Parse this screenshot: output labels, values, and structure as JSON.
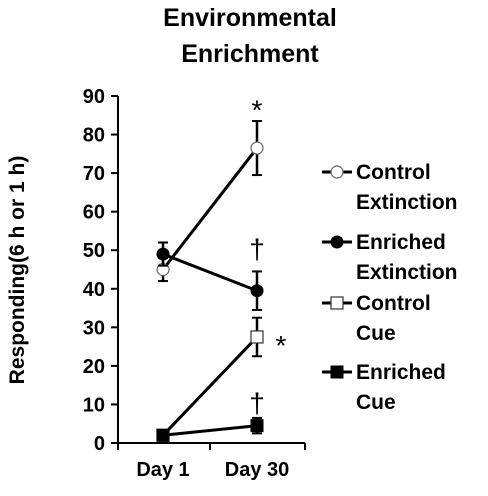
{
  "chart_data": {
    "type": "line",
    "title_lines": [
      "Environmental",
      "Enrichment"
    ],
    "ylabel": "Responding(6 h or 1 h)",
    "xlabel": "",
    "categories": [
      "Day 1",
      "Day 30"
    ],
    "ylim": [
      0,
      90
    ],
    "yticks": [
      "0",
      "10",
      "20",
      "30",
      "40",
      "50",
      "60",
      "70",
      "80",
      "90"
    ],
    "legend_position": "right",
    "series": [
      {
        "name_lines": [
          "Control",
          "Extinction"
        ],
        "marker": "open-circle",
        "values": [
          45,
          76.5
        ],
        "errors": [
          3,
          7
        ]
      },
      {
        "name_lines": [
          "Enriched",
          "Extinction"
        ],
        "marker": "filled-circle",
        "values": [
          49,
          39.5
        ],
        "errors": [
          3,
          5
        ]
      },
      {
        "name_lines": [
          "Control",
          "Cue"
        ],
        "marker": "open-square",
        "values": [
          2,
          27.5
        ],
        "errors": [
          1,
          5
        ]
      },
      {
        "name_lines": [
          "Enriched",
          "Cue"
        ],
        "marker": "filled-square",
        "values": [
          2,
          4.5
        ],
        "errors": [
          1,
          2
        ]
      }
    ],
    "annotations": [
      {
        "text": "*",
        "x": "Day 30",
        "y": 87
      },
      {
        "text": "†",
        "x": "Day 30",
        "y": 51
      },
      {
        "text": "*",
        "x": "Day 30",
        "y": 26
      },
      {
        "text": "†",
        "x": "Day 30",
        "y": 11
      }
    ],
    "colors": {
      "line": "#000000",
      "marker_fill": "#000000",
      "background": "#ffffff"
    }
  }
}
